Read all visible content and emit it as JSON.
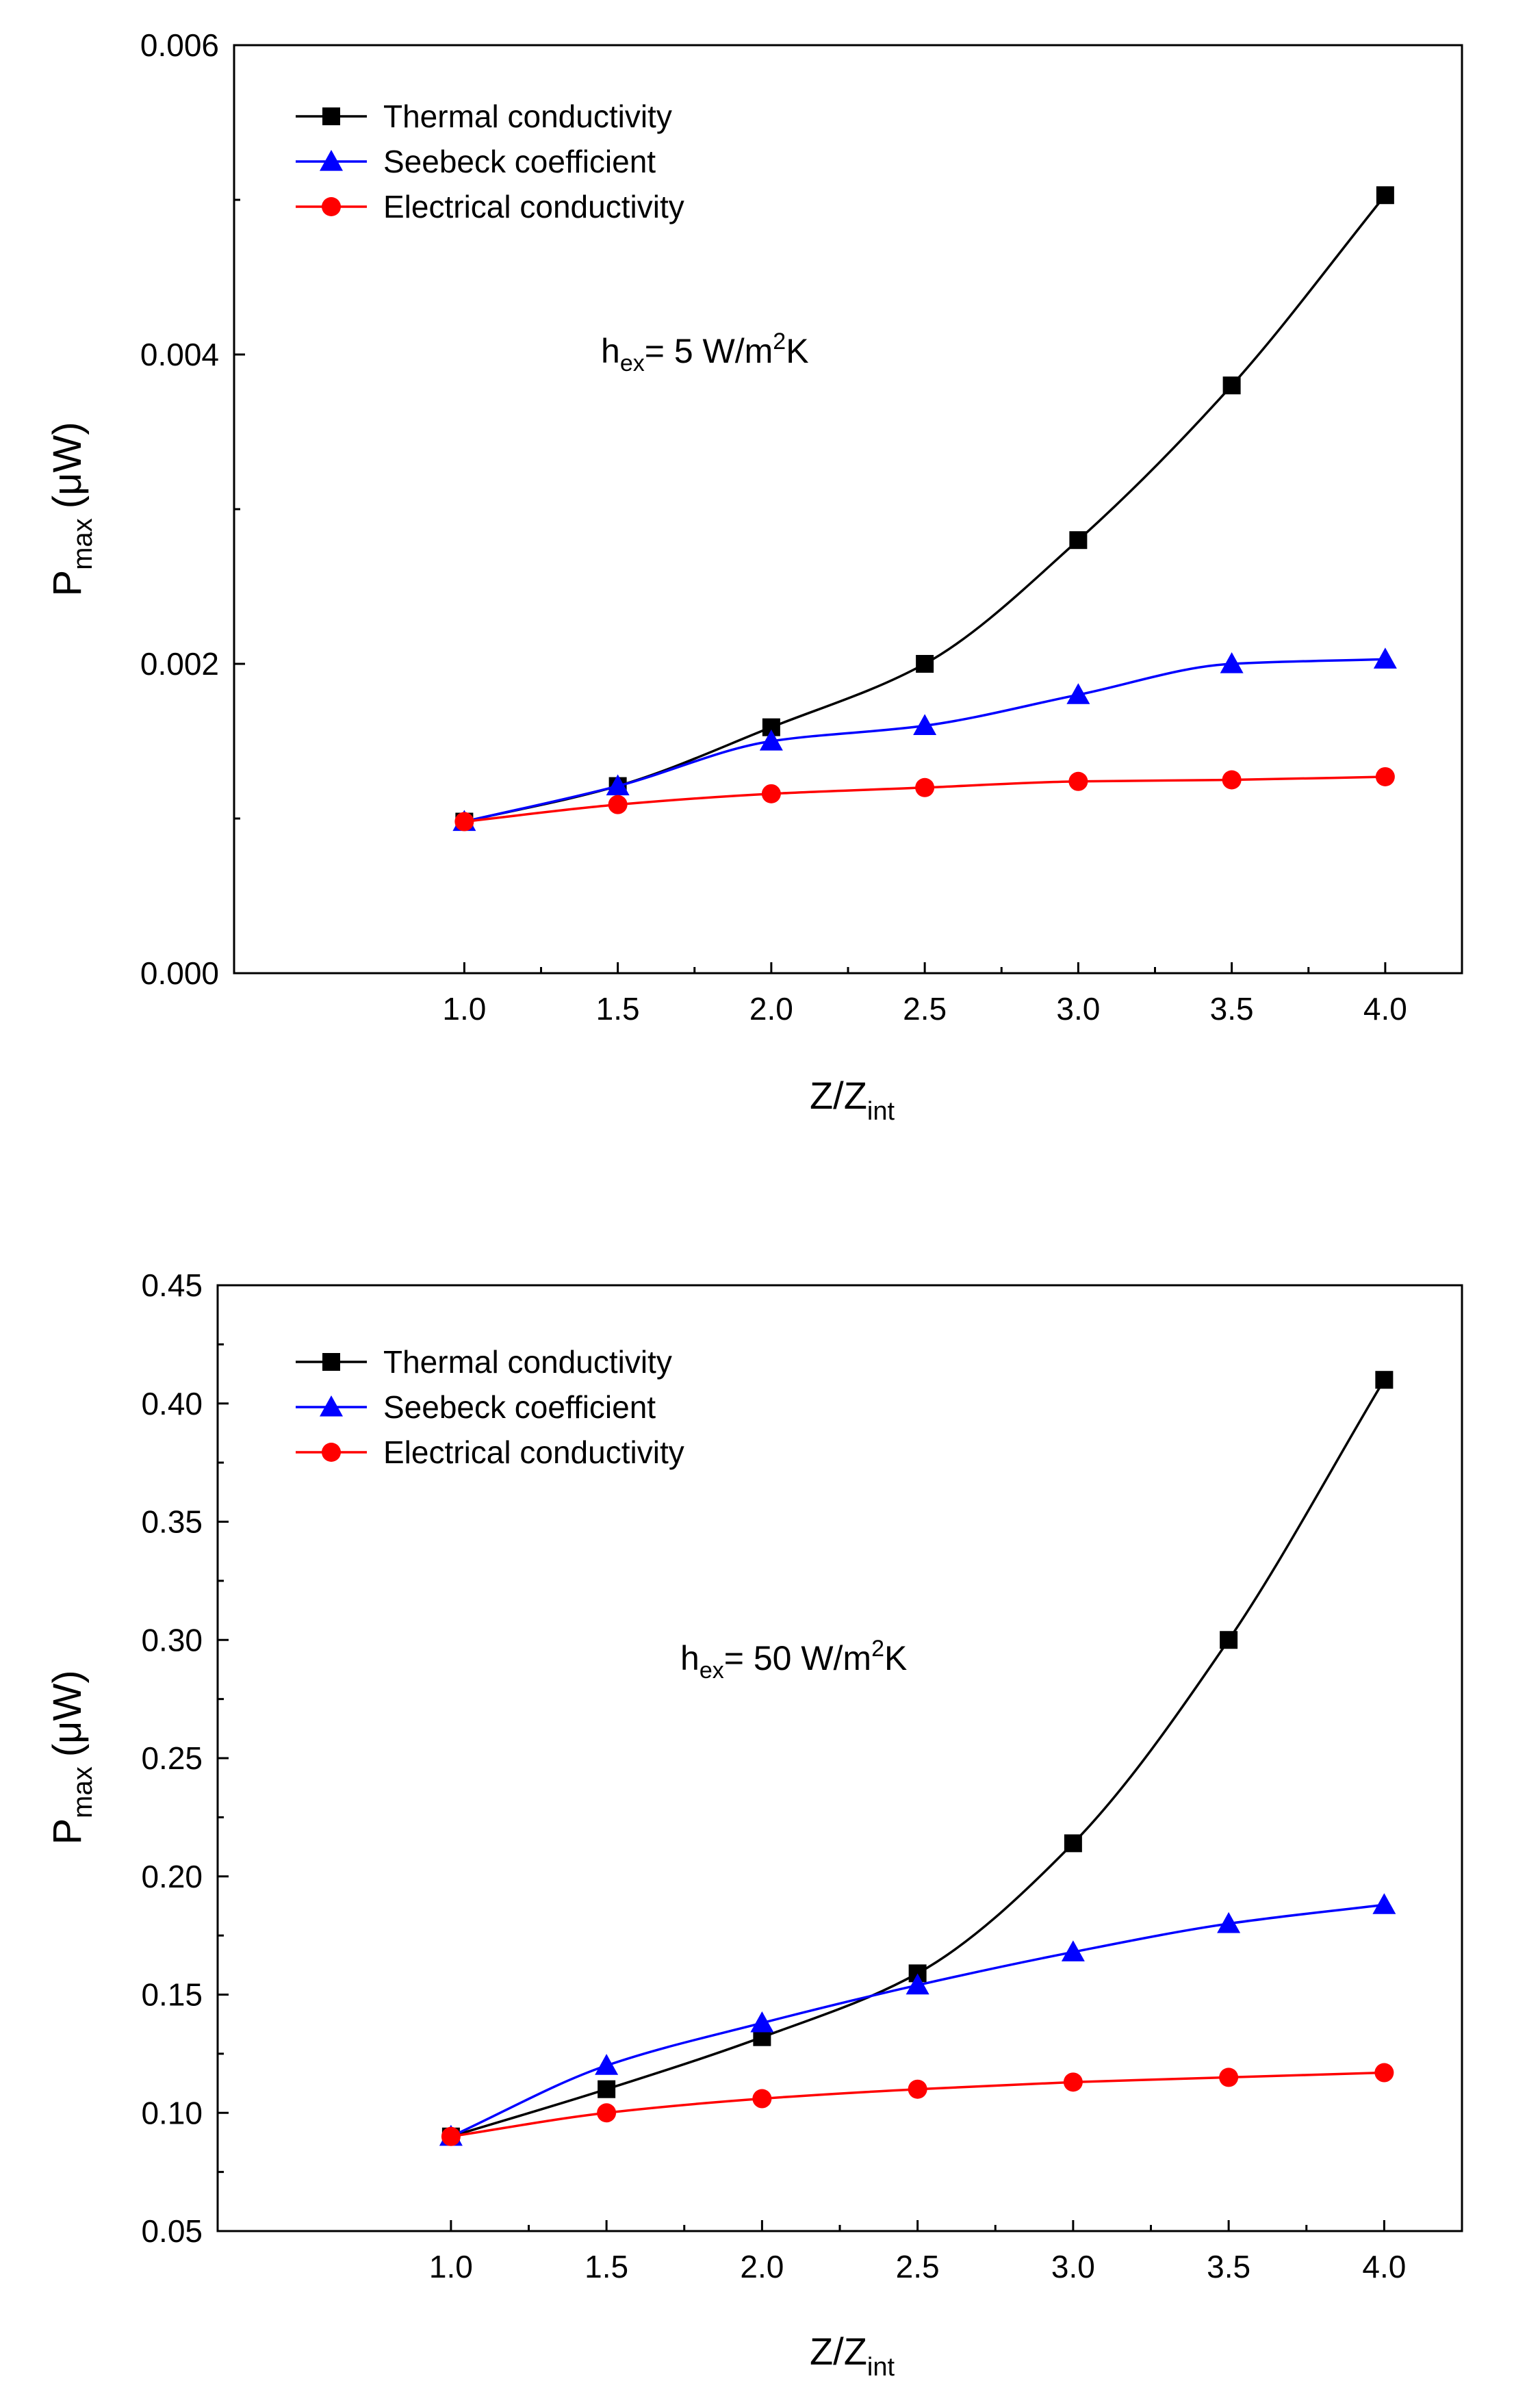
{
  "chart_data": [
    {
      "type": "line",
      "x": [
        1.0,
        1.5,
        2.0,
        2.5,
        3.0,
        3.5,
        4.0
      ],
      "xlim": [
        0.25,
        4.25
      ],
      "ylim": [
        0,
        0.006
      ],
      "xticks": [
        1.0,
        1.5,
        2.0,
        2.5,
        3.0,
        3.5,
        4.0
      ],
      "xtick_labels": [
        "1.0",
        "1.5",
        "2.0",
        "2.5",
        "3.0",
        "3.5",
        "4.0"
      ],
      "yticks": [
        0,
        0.002,
        0.004,
        0.006
      ],
      "ytick_labels": [
        "0.000",
        "0.002",
        "0.004",
        "0.006"
      ],
      "xlabel": {
        "main": "Z/Z",
        "sub": "int"
      },
      "ylabel": {
        "main": "P",
        "sub": "max",
        "unit": "(μW)"
      },
      "annotation": {
        "h": "h",
        "sub": "ex",
        "mid": "= 5 W/m",
        "sup": "2",
        "end": "K"
      },
      "legend_position": "top-left",
      "grid": false,
      "series": [
        {
          "name": "Thermal conductivity",
          "color": "#000000",
          "marker": "square",
          "values": [
            0.00098,
            0.00121,
            0.00159,
            0.002,
            0.0028,
            0.0038,
            0.00503
          ]
        },
        {
          "name": "Seebeck coefficient",
          "color": "#0000ff",
          "marker": "triangle",
          "values": [
            0.00098,
            0.00121,
            0.0015,
            0.0016,
            0.0018,
            0.002,
            0.00203
          ]
        },
        {
          "name": "Electrical conductivity",
          "color": "#ff0000",
          "marker": "circle",
          "values": [
            0.00098,
            0.00109,
            0.00116,
            0.0012,
            0.00124,
            0.00125,
            0.00127
          ]
        }
      ]
    },
    {
      "type": "line",
      "x": [
        1.0,
        1.5,
        2.0,
        2.5,
        3.0,
        3.5,
        4.0
      ],
      "xlim": [
        0.25,
        4.25
      ],
      "ylim": [
        0.05,
        0.45
      ],
      "xticks": [
        1.0,
        1.5,
        2.0,
        2.5,
        3.0,
        3.5,
        4.0
      ],
      "xtick_labels": [
        "1.0",
        "1.5",
        "2.0",
        "2.5",
        "3.0",
        "3.5",
        "4.0"
      ],
      "yticks": [
        0.05,
        0.1,
        0.15,
        0.2,
        0.25,
        0.3,
        0.35,
        0.4,
        0.45
      ],
      "ytick_labels": [
        "0.05",
        "0.10",
        "0.15",
        "0.20",
        "0.25",
        "0.30",
        "0.35",
        "0.40",
        "0.45"
      ],
      "xlabel": {
        "main": "Z/Z",
        "sub": "int"
      },
      "ylabel": {
        "main": "P",
        "sub": "max",
        "unit": "(μW)"
      },
      "annotation": {
        "h": "h",
        "sub": "ex",
        "mid": "= 50 W/m",
        "sup": "2",
        "end": "K"
      },
      "legend_position": "top-left",
      "grid": false,
      "series": [
        {
          "name": "Thermal conductivity",
          "color": "#000000",
          "marker": "square",
          "values": [
            0.09,
            0.11,
            0.132,
            0.159,
            0.214,
            0.3,
            0.41
          ]
        },
        {
          "name": "Seebeck coefficient",
          "color": "#0000ff",
          "marker": "triangle",
          "values": [
            0.09,
            0.12,
            0.138,
            0.154,
            0.168,
            0.18,
            0.188
          ]
        },
        {
          "name": "Electrical conductivity",
          "color": "#ff0000",
          "marker": "circle",
          "values": [
            0.09,
            0.1,
            0.106,
            0.11,
            0.113,
            0.115,
            0.117
          ]
        }
      ]
    }
  ]
}
